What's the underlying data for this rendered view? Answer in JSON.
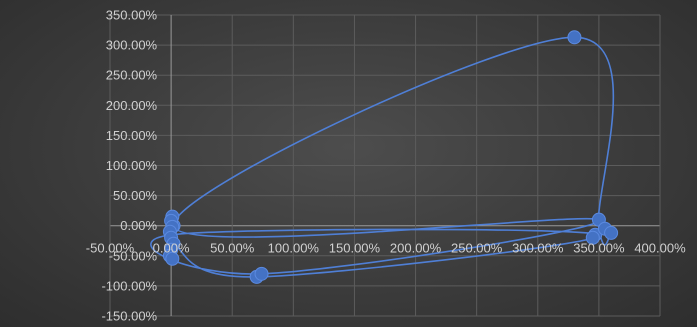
{
  "chart_data": {
    "type": "scatter",
    "title": "",
    "xlabel": "",
    "ylabel": "",
    "xlim": [
      -50,
      400
    ],
    "ylim": [
      -150,
      350
    ],
    "grid": true,
    "x_ticks": [
      "-50.00%",
      "0.00%",
      "50.00%",
      "100.00%",
      "150.00%",
      "200.00%",
      "250.00%",
      "300.00%",
      "350.00%",
      "400.00%"
    ],
    "y_ticks": [
      "350.00%",
      "300.00%",
      "250.00%",
      "200.00%",
      "150.00%",
      "100.00%",
      "50.00%",
      "0.00%",
      "-50.00%",
      "-100.00%",
      "-150.00%"
    ],
    "x_tick_values": [
      -50,
      0,
      50,
      100,
      150,
      200,
      250,
      300,
      350,
      400
    ],
    "y_tick_values": [
      350,
      300,
      250,
      200,
      150,
      100,
      50,
      0,
      -50,
      -100,
      -150
    ],
    "series": [
      {
        "color": "#4472c4",
        "smooth": true,
        "points": [
          {
            "x": 2,
            "y": 0
          },
          {
            "x": 1,
            "y": 15
          },
          {
            "x": 0,
            "y": 8
          },
          {
            "x": 1,
            "y": -2
          },
          {
            "x": -1,
            "y": -10
          },
          {
            "x": 0,
            "y": -20
          },
          {
            "x": 2,
            "y": -30
          },
          {
            "x": 0,
            "y": -40
          },
          {
            "x": -1,
            "y": -50
          },
          {
            "x": 1,
            "y": -55
          },
          {
            "x": 70,
            "y": -85
          },
          {
            "x": 74,
            "y": -80
          },
          {
            "x": 350,
            "y": 10
          },
          {
            "x": 347,
            "y": -15
          },
          {
            "x": 355,
            "y": -5
          },
          {
            "x": 360,
            "y": -12
          },
          {
            "x": 345,
            "y": -20
          },
          {
            "x": 330,
            "y": 313
          }
        ],
        "path": [
          {
            "x": 1,
            "y": -30
          },
          {
            "x": 70,
            "y": -85
          },
          {
            "x": 350,
            "y": -15
          },
          {
            "x": 1,
            "y": -15
          },
          {
            "x": 74,
            "y": -80
          },
          {
            "x": 350,
            "y": 10
          },
          {
            "x": 2,
            "y": 0
          },
          {
            "x": 330,
            "y": 313
          },
          {
            "x": 350,
            "y": -5
          },
          {
            "x": 360,
            "y": -12
          }
        ]
      }
    ]
  }
}
